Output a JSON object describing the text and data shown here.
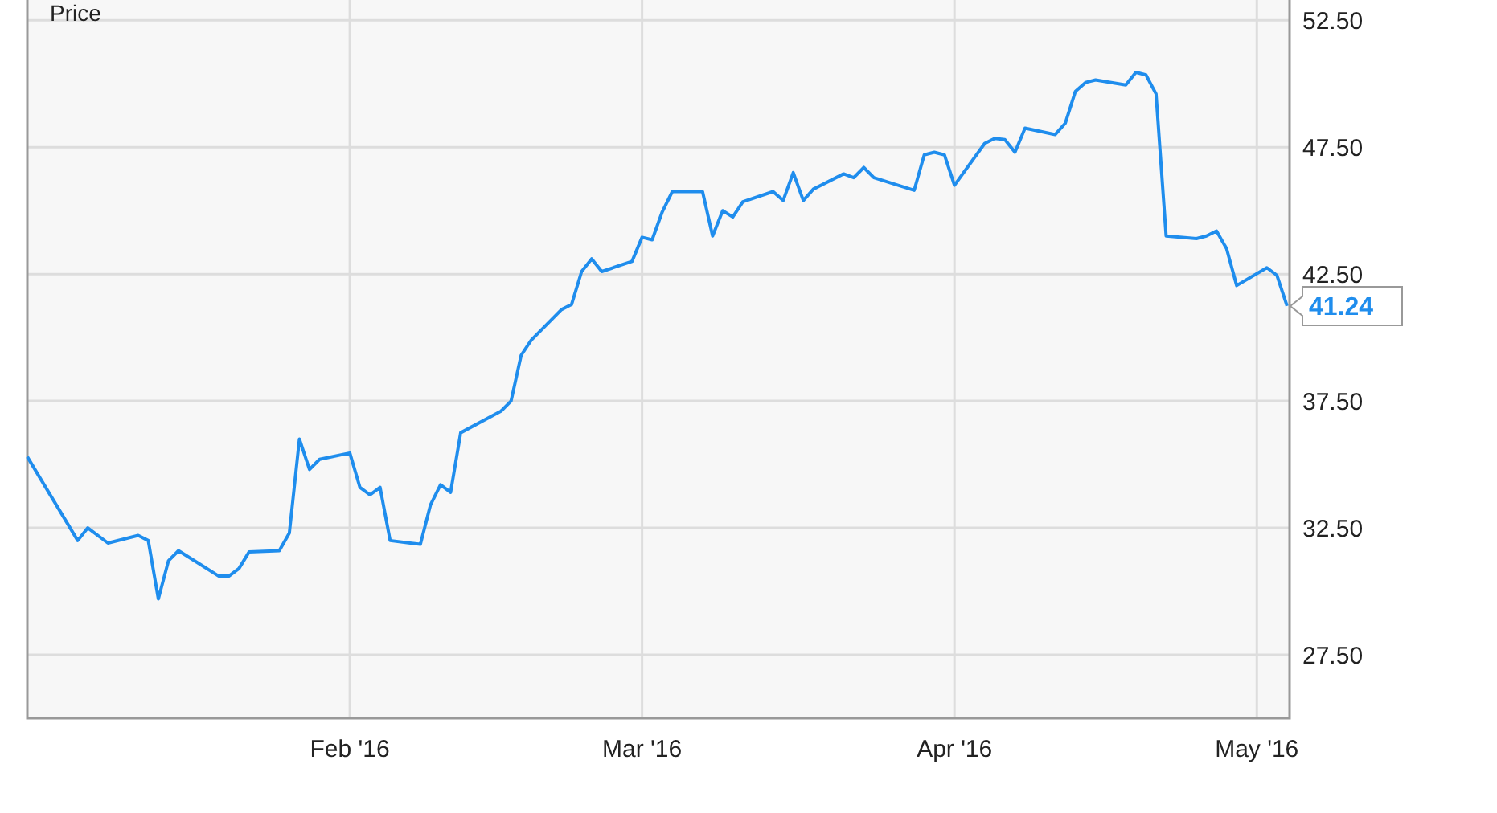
{
  "chart_data": {
    "type": "line",
    "title": "Price",
    "x": [
      "2015-12-31",
      "2016-01-05",
      "2016-01-06",
      "2016-01-08",
      "2016-01-11",
      "2016-01-12",
      "2016-01-13",
      "2016-01-14",
      "2016-01-15",
      "2016-01-19",
      "2016-01-20",
      "2016-01-21",
      "2016-01-22",
      "2016-01-25",
      "2016-01-26",
      "2016-01-27",
      "2016-01-28",
      "2016-01-29",
      "2016-02-01",
      "2016-02-02",
      "2016-02-03",
      "2016-02-04",
      "2016-02-05",
      "2016-02-08",
      "2016-02-09",
      "2016-02-10",
      "2016-02-11",
      "2016-02-12",
      "2016-02-16",
      "2016-02-17",
      "2016-02-18",
      "2016-02-19",
      "2016-02-22",
      "2016-02-23",
      "2016-02-24",
      "2016-02-25",
      "2016-02-26",
      "2016-02-29",
      "2016-03-01",
      "2016-03-02",
      "2016-03-03",
      "2016-03-04",
      "2016-03-07",
      "2016-03-08",
      "2016-03-09",
      "2016-03-10",
      "2016-03-11",
      "2016-03-14",
      "2016-03-15",
      "2016-03-16",
      "2016-03-17",
      "2016-03-18",
      "2016-03-21",
      "2016-03-22",
      "2016-03-23",
      "2016-03-24",
      "2016-03-28",
      "2016-03-29",
      "2016-03-30",
      "2016-03-31",
      "2016-04-01",
      "2016-04-04",
      "2016-04-05",
      "2016-04-06",
      "2016-04-07",
      "2016-04-08",
      "2016-04-11",
      "2016-04-12",
      "2016-04-13",
      "2016-04-14",
      "2016-04-15",
      "2016-04-18",
      "2016-04-19",
      "2016-04-20",
      "2016-04-21",
      "2016-04-22",
      "2016-04-25",
      "2016-04-26",
      "2016-04-27",
      "2016-04-28",
      "2016-04-29",
      "2016-05-02",
      "2016-05-03",
      "2016-05-04"
    ],
    "series": [
      {
        "color": "#1f8ded",
        "values": [
          35.3,
          32.0,
          32.5,
          31.9,
          32.2,
          32.0,
          29.7,
          31.2,
          31.6,
          30.6,
          30.6,
          30.9,
          31.55,
          31.6,
          32.3,
          36.0,
          34.8,
          35.2,
          35.45,
          34.1,
          33.8,
          34.1,
          32.0,
          31.85,
          33.4,
          34.2,
          33.9,
          36.25,
          37.1,
          37.5,
          39.3,
          39.9,
          41.1,
          41.3,
          42.6,
          43.1,
          42.6,
          43.0,
          43.95,
          43.85,
          44.95,
          45.75,
          45.75,
          44.0,
          45.0,
          44.75,
          45.35,
          45.75,
          45.4,
          46.5,
          45.4,
          45.85,
          46.45,
          46.3,
          46.7,
          46.3,
          45.8,
          47.2,
          47.3,
          47.2,
          46.0,
          47.65,
          47.85,
          47.8,
          47.3,
          48.25,
          48.0,
          48.45,
          49.7,
          50.05,
          50.15,
          49.95,
          50.45,
          50.35,
          49.6,
          44.0,
          43.9,
          44.0,
          44.2,
          43.5,
          42.05,
          42.75,
          42.45,
          41.24
        ]
      }
    ],
    "xlim": [
      "2015-12-31",
      "2016-05-04T06:00"
    ],
    "xticks": [
      {
        "value": "2016-02-01",
        "label": "Feb '16"
      },
      {
        "value": "2016-03-01",
        "label": "Mar '16"
      },
      {
        "value": "2016-04-01",
        "label": "Apr '16"
      },
      {
        "value": "2016-05-01",
        "label": "May '16"
      }
    ],
    "ylim": [
      25,
      53.3
    ],
    "yticks": [
      {
        "value": 27.5,
        "label": "27.50"
      },
      {
        "value": 32.5,
        "label": "32.50"
      },
      {
        "value": 37.5,
        "label": "37.50"
      },
      {
        "value": 42.5,
        "label": "42.50"
      },
      {
        "value": 47.5,
        "label": "47.50"
      },
      {
        "value": 52.5,
        "label": "52.50"
      }
    ],
    "grid": true,
    "annotations": [
      {
        "text": "41.24",
        "x": "2016-05-04",
        "y": 41.24
      }
    ]
  }
}
